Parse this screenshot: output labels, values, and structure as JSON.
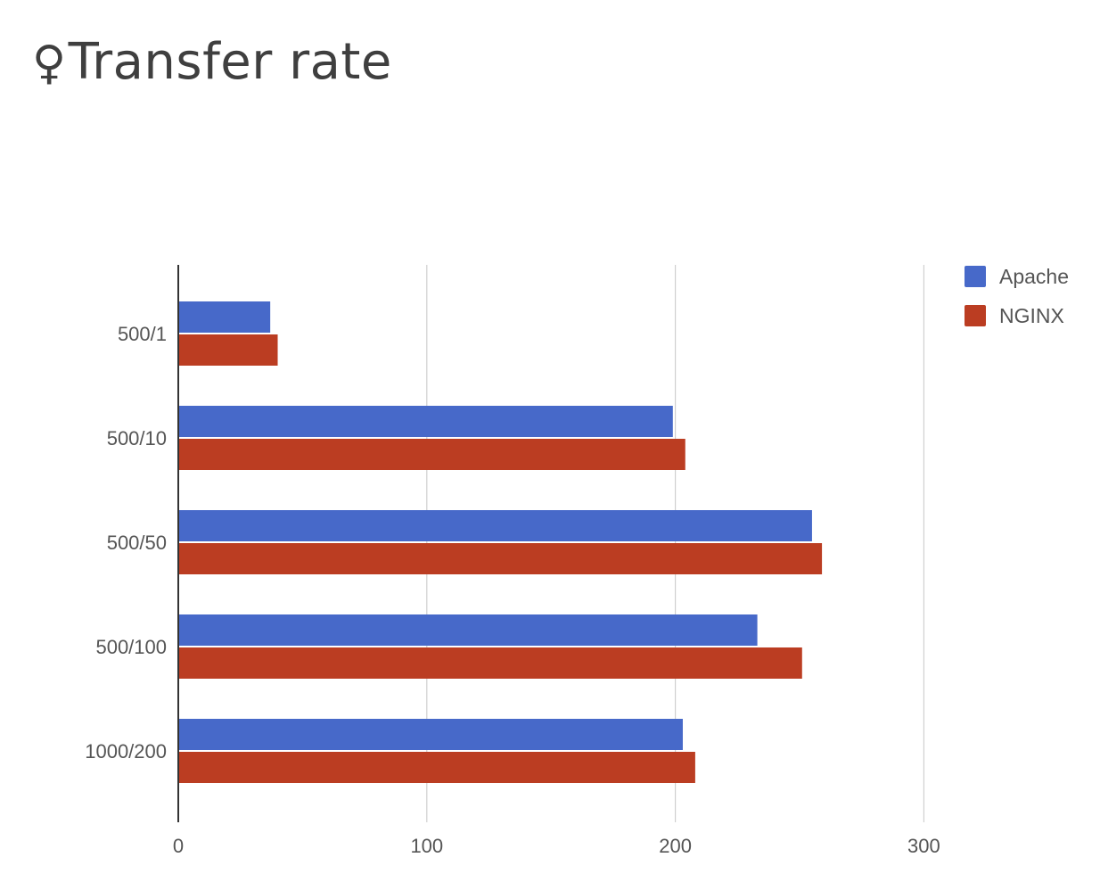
{
  "header": {
    "title": "Transfer rate",
    "icon": "female-sign-icon",
    "icon_glyph": "♀"
  },
  "chart_data": {
    "type": "bar",
    "orientation": "horizontal",
    "title": "",
    "xlabel": "",
    "ylabel": "",
    "categories": [
      "500/1",
      "500/10",
      "500/50",
      "500/100",
      "1000/200"
    ],
    "series": [
      {
        "name": "Apache",
        "color": "#4769c9",
        "values": [
          37,
          199,
          255,
          233,
          203
        ]
      },
      {
        "name": "NGINX",
        "color": "#bb3d22",
        "values": [
          40,
          204,
          259,
          251,
          208
        ]
      }
    ],
    "xlim": [
      0,
      300
    ],
    "xticks": [
      "0",
      "100",
      "200",
      "300"
    ],
    "grid": true,
    "legend_position": "top-right"
  }
}
